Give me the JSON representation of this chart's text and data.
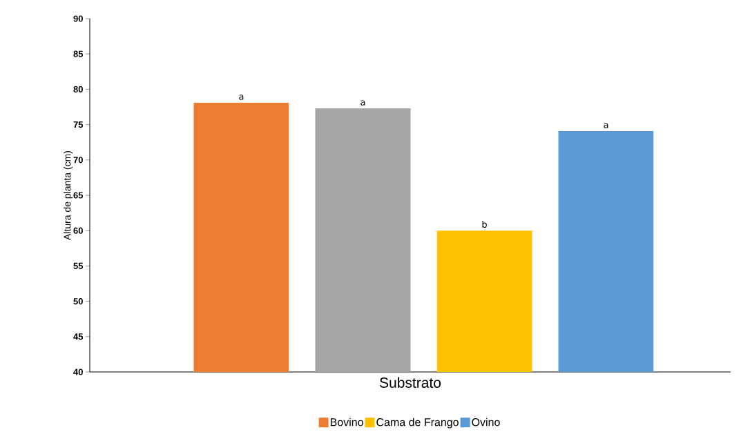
{
  "chart_data": {
    "type": "bar",
    "xlabel": "Substrato",
    "ylabel": "Altura de planta (cm)",
    "categories": [
      null
    ],
    "series": [
      {
        "name": "Bovino",
        "color": "#ed7d31",
        "values": [
          78.1
        ],
        "value_labels": [
          "a"
        ]
      },
      {
        "color": "#a5a5a5",
        "values": [
          77.3
        ],
        "value_labels": [
          "a"
        ]
      },
      {
        "name": "Cama de Frango",
        "color": "#ffc000",
        "values": [
          60
        ],
        "value_labels": [
          "b"
        ]
      },
      {
        "name": "Ovino",
        "color": "#5b9bd5",
        "values": [
          74.1
        ],
        "value_labels": [
          "a"
        ]
      }
    ],
    "ylim": [
      40,
      90
    ],
    "yticks": [
      40,
      45,
      50,
      55,
      60,
      65,
      70,
      75,
      80,
      85,
      90
    ],
    "grid": false,
    "legend": "bottom"
  }
}
